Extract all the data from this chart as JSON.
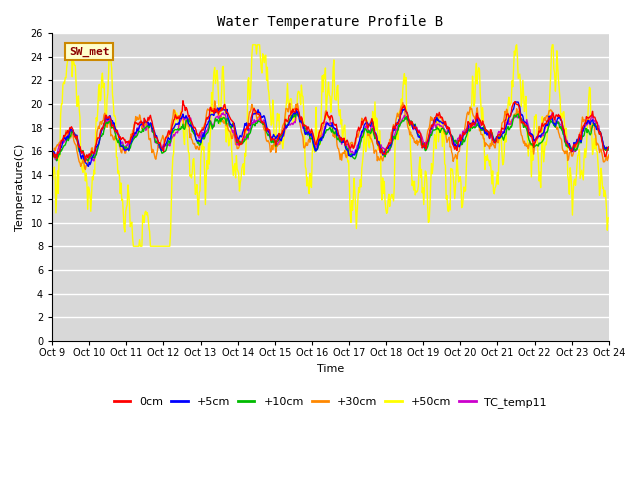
{
  "title": "Water Temperature Profile B",
  "xlabel": "Time",
  "ylabel": "Temperature(C)",
  "ylim": [
    0,
    26
  ],
  "yticks": [
    0,
    2,
    4,
    6,
    8,
    10,
    12,
    14,
    16,
    18,
    20,
    22,
    24,
    26
  ],
  "xtick_labels": [
    "Oct 9",
    "Oct 10",
    "Oct 11",
    "Oct 12",
    "Oct 13",
    "Oct 14",
    "Oct 15",
    "Oct 16",
    "Oct 17",
    "Oct 18",
    "Oct 19",
    "Oct 20",
    "Oct 21",
    "Oct 22",
    "Oct 23",
    "Oct 24"
  ],
  "plot_bg_color": "#d8d8d8",
  "fig_bg_color": "#ffffff",
  "legend_label": "SW_met",
  "legend_text_color": "#8B0000",
  "legend_box_color": "#ffffcc",
  "legend_edge_color": "#cc8800",
  "series": [
    {
      "label": "0cm",
      "color": "#ff0000"
    },
    {
      "label": "+5cm",
      "color": "#0000ff"
    },
    {
      "label": "+10cm",
      "color": "#00bb00"
    },
    {
      "label": "+30cm",
      "color": "#ff8800"
    },
    {
      "label": "+50cm",
      "color": "#ffff00"
    },
    {
      "label": "TC_temp11",
      "color": "#cc00cc"
    }
  ],
  "n_days": 15,
  "pts_per_day": 48
}
